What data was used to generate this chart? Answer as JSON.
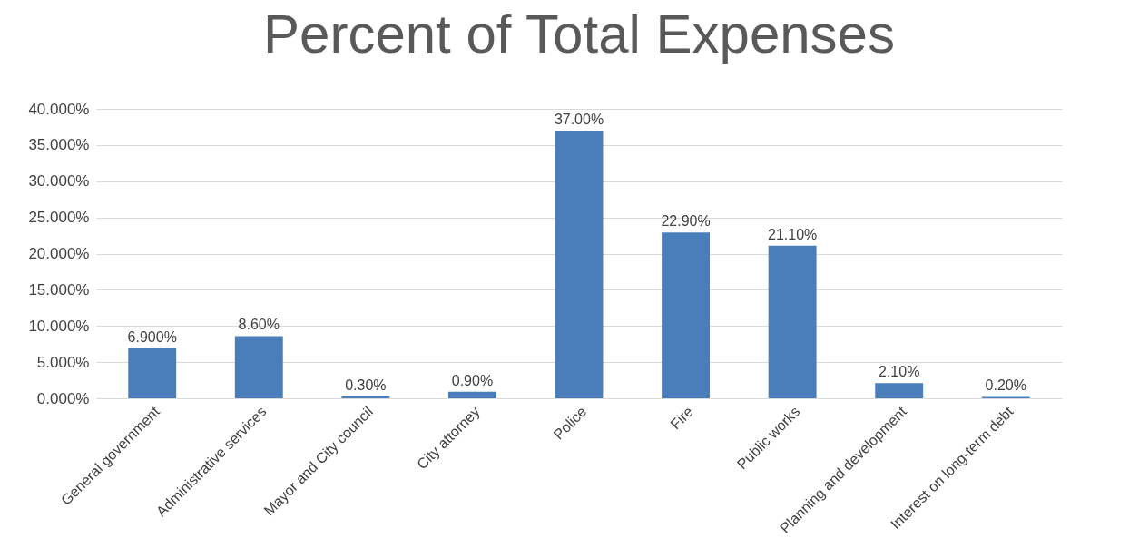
{
  "chart_data": {
    "type": "bar",
    "title": "Percent of Total Expenses",
    "categories": [
      "General government",
      "Administrative services",
      "Mayor and City council",
      "City attorney",
      "Police",
      "Fire",
      "Public works",
      "Planning and development",
      "Interest on long-term debt"
    ],
    "values": [
      6.9,
      8.6,
      0.3,
      0.9,
      37.0,
      22.9,
      21.1,
      2.1,
      0.2
    ],
    "value_labels": [
      "6.900%",
      "8.60%",
      "0.30%",
      "0.90%",
      "37.00%",
      "22.90%",
      "21.10%",
      "2.10%",
      "0.20%"
    ],
    "color": "#4a7ebb",
    "ylim": [
      0,
      40
    ],
    "yticks": [
      {
        "value": 0,
        "label": "0.000%"
      },
      {
        "value": 5,
        "label": "5.000%"
      },
      {
        "value": 10,
        "label": "10.000%"
      },
      {
        "value": 15,
        "label": "15.000%"
      },
      {
        "value": 20,
        "label": "20.000%"
      },
      {
        "value": 25,
        "label": "25.000%"
      },
      {
        "value": 30,
        "label": "30.000%"
      },
      {
        "value": 35,
        "label": "35.000%"
      },
      {
        "value": 40,
        "label": "40.000%"
      }
    ],
    "grid": "y"
  }
}
